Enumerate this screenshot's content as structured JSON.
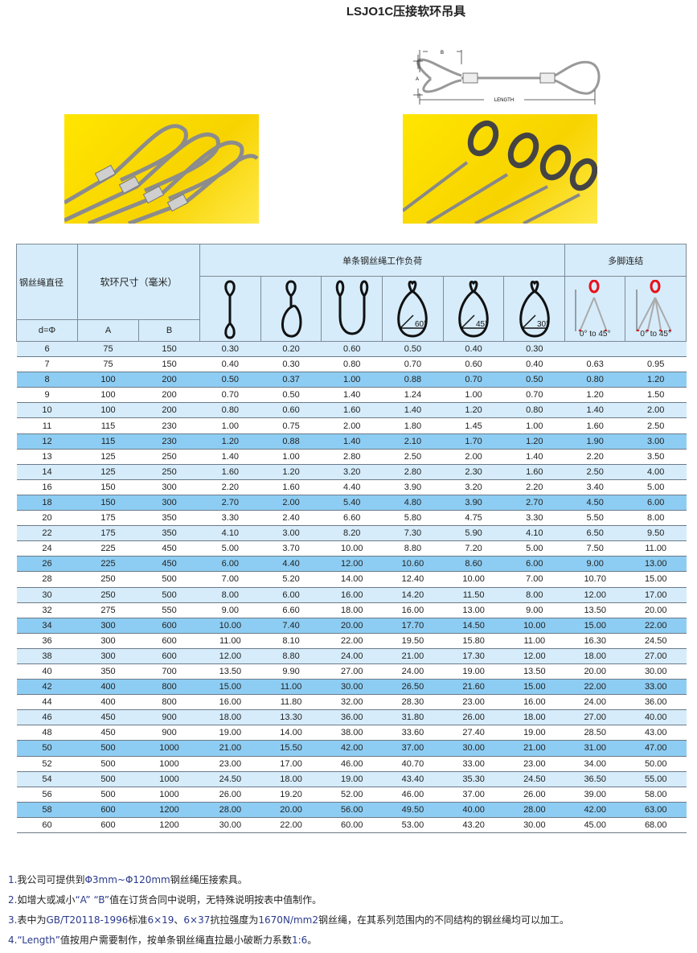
{
  "title": "LSJO1C压接软环吊具",
  "diagram": {
    "label_a": "A",
    "label_b": "B",
    "label_length": "LENGTH"
  },
  "colors": {
    "header_bg": "#d6ecfa",
    "row_light": "#d6ecfa",
    "row_dark": "#8ecdf3",
    "photo_bg": "#ffe600",
    "hook_red": "#e8101a"
  },
  "table": {
    "col_diameter": "钢丝绳直径",
    "col_loop_size": "软环尺寸（毫米）",
    "col_single_load": "单条钢丝绳工作负荷",
    "col_multi_leg": "多脚连结",
    "sub_d": "d=Φ",
    "sub_a": "A",
    "sub_b": "B",
    "angles": [
      "60°",
      "45°",
      "30°"
    ],
    "multi_angle": "0° to 45°",
    "icons": [
      "vertical-sling-icon",
      "choker-sling-icon",
      "basket-sling-icon",
      "basket-60-icon",
      "basket-45-icon",
      "basket-30-icon",
      "two-leg-sling-icon",
      "four-leg-sling-icon"
    ],
    "rows": [
      [
        "6",
        "75",
        "150",
        "0.30",
        "0.20",
        "0.60",
        "0.50",
        "0.40",
        "0.30",
        "",
        ""
      ],
      [
        "7",
        "75",
        "150",
        "0.40",
        "0.30",
        "0.80",
        "0.70",
        "0.60",
        "0.40",
        "0.63",
        "0.95"
      ],
      [
        "8",
        "100",
        "200",
        "0.50",
        "0.37",
        "1.00",
        "0.88",
        "0.70",
        "0.50",
        "0.80",
        "1.20"
      ],
      [
        "9",
        "100",
        "200",
        "0.70",
        "0.50",
        "1.40",
        "1.24",
        "1.00",
        "0.70",
        "1.20",
        "1.50"
      ],
      [
        "10",
        "100",
        "200",
        "0.80",
        "0.60",
        "1.60",
        "1.40",
        "1.20",
        "0.80",
        "1.40",
        "2.00"
      ],
      [
        "11",
        "115",
        "230",
        "1.00",
        "0.75",
        "2.00",
        "1.80",
        "1.45",
        "1.00",
        "1.60",
        "2.50"
      ],
      [
        "12",
        "115",
        "230",
        "1.20",
        "0.88",
        "1.40",
        "2.10",
        "1.70",
        "1.20",
        "1.90",
        "3.00"
      ],
      [
        "13",
        "125",
        "250",
        "1.40",
        "1.00",
        "2.80",
        "2.50",
        "2.00",
        "1.40",
        "2.20",
        "3.50"
      ],
      [
        "14",
        "125",
        "250",
        "1.60",
        "1.20",
        "3.20",
        "2.80",
        "2.30",
        "1.60",
        "2.50",
        "4.00"
      ],
      [
        "16",
        "150",
        "300",
        "2.20",
        "1.60",
        "4.40",
        "3.90",
        "3.20",
        "2.20",
        "3.40",
        "5.00"
      ],
      [
        "18",
        "150",
        "300",
        "2.70",
        "2.00",
        "5.40",
        "4.80",
        "3.90",
        "2.70",
        "4.50",
        "6.00"
      ],
      [
        "20",
        "175",
        "350",
        "3.30",
        "2.40",
        "6.60",
        "5.80",
        "4.75",
        "3.30",
        "5.50",
        "8.00"
      ],
      [
        "22",
        "175",
        "350",
        "4.10",
        "3.00",
        "8.20",
        "7.30",
        "5.90",
        "4.10",
        "6.50",
        "9.50"
      ],
      [
        "24",
        "225",
        "450",
        "5.00",
        "3.70",
        "10.00",
        "8.80",
        "7.20",
        "5.00",
        "7.50",
        "11.00"
      ],
      [
        "26",
        "225",
        "450",
        "6.00",
        "4.40",
        "12.00",
        "10.60",
        "8.60",
        "6.00",
        "9.00",
        "13.00"
      ],
      [
        "28",
        "250",
        "500",
        "7.00",
        "5.20",
        "14.00",
        "12.40",
        "10.00",
        "7.00",
        "10.70",
        "15.00"
      ],
      [
        "30",
        "250",
        "500",
        "8.00",
        "6.00",
        "16.00",
        "14.20",
        "11.50",
        "8.00",
        "12.00",
        "17.00"
      ],
      [
        "32",
        "275",
        "550",
        "9.00",
        "6.60",
        "18.00",
        "16.00",
        "13.00",
        "9.00",
        "13.50",
        "20.00"
      ],
      [
        "34",
        "300",
        "600",
        "10.00",
        "7.40",
        "20.00",
        "17.70",
        "14.50",
        "10.00",
        "15.00",
        "22.00"
      ],
      [
        "36",
        "300",
        "600",
        "11.00",
        "8.10",
        "22.00",
        "19.50",
        "15.80",
        "11.00",
        "16.30",
        "24.50"
      ],
      [
        "38",
        "300",
        "600",
        "12.00",
        "8.80",
        "24.00",
        "21.00",
        "17.30",
        "12.00",
        "18.00",
        "27.00"
      ],
      [
        "40",
        "350",
        "700",
        "13.50",
        "9.90",
        "27.00",
        "24.00",
        "19.00",
        "13.50",
        "20.00",
        "30.00"
      ],
      [
        "42",
        "400",
        "800",
        "15.00",
        "11.00",
        "30.00",
        "26.50",
        "21.60",
        "15.00",
        "22.00",
        "33.00"
      ],
      [
        "44",
        "400",
        "800",
        "16.00",
        "11.80",
        "32.00",
        "28.30",
        "23.00",
        "16.00",
        "24.00",
        "36.00"
      ],
      [
        "46",
        "450",
        "900",
        "18.00",
        "13.30",
        "36.00",
        "31.80",
        "26.00",
        "18.00",
        "27.00",
        "40.00"
      ],
      [
        "48",
        "450",
        "900",
        "19.00",
        "14.00",
        "38.00",
        "33.60",
        "27.40",
        "19.00",
        "28.50",
        "43.00"
      ],
      [
        "50",
        "500",
        "1000",
        "21.00",
        "15.50",
        "42.00",
        "37.00",
        "30.00",
        "21.00",
        "31.00",
        "47.00"
      ],
      [
        "52",
        "500",
        "1000",
        "23.00",
        "17.00",
        "46.00",
        "40.70",
        "33.00",
        "23.00",
        "34.00",
        "50.00"
      ],
      [
        "54",
        "500",
        "1000",
        "24.50",
        "18.00",
        "19.00",
        "43.40",
        "35.30",
        "24.50",
        "36.50",
        "55.00"
      ],
      [
        "56",
        "500",
        "1000",
        "26.00",
        "19.20",
        "52.00",
        "46.00",
        "37.00",
        "26.00",
        "39.00",
        "58.00"
      ],
      [
        "58",
        "600",
        "1200",
        "28.00",
        "20.00",
        "56.00",
        "49.50",
        "40.00",
        "28.00",
        "42.00",
        "63.00"
      ],
      [
        "60",
        "600",
        "1200",
        "30.00",
        "22.00",
        "60.00",
        "53.00",
        "43.20",
        "30.00",
        "45.00",
        "68.00"
      ]
    ]
  },
  "notes": [
    [
      {
        "t": "1.",
        "n": 1
      },
      {
        "t": "我公司可提供到"
      },
      {
        "t": "Φ3mm~Φ120mm",
        "n": 1
      },
      {
        "t": "钢丝绳压接索具。"
      }
    ],
    [
      {
        "t": "2.",
        "n": 1
      },
      {
        "t": "如增大或减小"
      },
      {
        "t": "“A” “B”",
        "n": 1
      },
      {
        "t": "值在订货合同中说明，无特殊说明按表中值制作。"
      }
    ],
    [
      {
        "t": "3.",
        "n": 1
      },
      {
        "t": "表中为"
      },
      {
        "t": "GB/T20118-1996",
        "n": 1
      },
      {
        "t": "标准"
      },
      {
        "t": "6×19",
        "n": 1
      },
      {
        "t": "、"
      },
      {
        "t": "6×37",
        "n": 1
      },
      {
        "t": "抗拉强度为"
      },
      {
        "t": "1670N/mm2",
        "n": 1
      },
      {
        "t": "钢丝绳，在其系列范围内的不同结构的钢丝绳均可以加工。"
      }
    ],
    [
      {
        "t": "4.",
        "n": 1
      },
      {
        "t": "“Length”",
        "n": 1
      },
      {
        "t": "值按用户需要制作，按单条钢丝绳直拉最小破断力系数"
      },
      {
        "t": "1:6",
        "n": 1
      },
      {
        "t": "。"
      }
    ]
  ]
}
